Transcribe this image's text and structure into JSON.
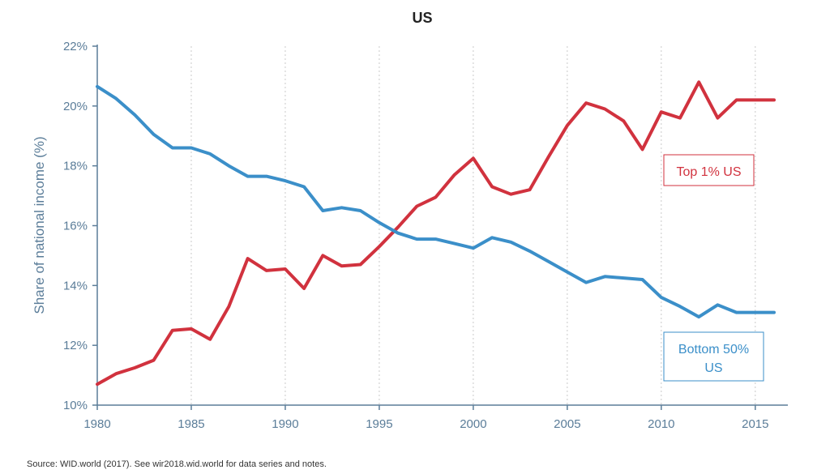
{
  "chart_data": {
    "type": "line",
    "title": "US",
    "ylabel": "Share of national income (%)",
    "xlabel": "",
    "xlim": [
      1980,
      2016
    ],
    "ylim": [
      10,
      22
    ],
    "x_ticks": [
      1980,
      1985,
      1990,
      1995,
      2000,
      2005,
      2010,
      2015
    ],
    "y_ticks": [
      "10%",
      "12%",
      "14%",
      "16%",
      "18%",
      "20%",
      "22%"
    ],
    "y_tick_values": [
      10,
      12,
      14,
      16,
      18,
      20,
      22
    ],
    "grid": "vertical dotted",
    "x": [
      1980,
      1981,
      1982,
      1983,
      1984,
      1985,
      1986,
      1987,
      1988,
      1989,
      1990,
      1991,
      1992,
      1993,
      1994,
      1995,
      1996,
      1997,
      1998,
      1999,
      2000,
      2001,
      2002,
      2003,
      2004,
      2005,
      2006,
      2007,
      2008,
      2009,
      2010,
      2011,
      2012,
      2013,
      2014,
      2015,
      2016
    ],
    "series": [
      {
        "name": "Top 1% US",
        "color": "#d1323e",
        "values": [
          10.7,
          11.05,
          11.25,
          11.5,
          12.5,
          12.55,
          12.2,
          13.3,
          14.9,
          14.5,
          14.55,
          13.9,
          15.0,
          14.65,
          14.7,
          15.3,
          15.95,
          16.65,
          16.95,
          17.7,
          18.25,
          17.3,
          17.05,
          17.2,
          18.3,
          19.35,
          20.1,
          19.9,
          19.5,
          18.55,
          19.8,
          19.6,
          20.8,
          19.6,
          20.2,
          20.2,
          20.2
        ]
      },
      {
        "name": "Bottom 50% US",
        "color": "#3b8fc9",
        "values": [
          20.65,
          20.25,
          19.7,
          19.05,
          18.6,
          18.6,
          18.4,
          18.0,
          17.65,
          17.65,
          17.5,
          17.3,
          16.5,
          16.6,
          16.5,
          16.1,
          15.75,
          15.55,
          15.55,
          15.4,
          15.25,
          15.6,
          15.45,
          15.15,
          14.8,
          14.45,
          14.1,
          14.3,
          14.25,
          14.2,
          13.6,
          13.3,
          12.95,
          13.35,
          13.1,
          13.1,
          13.1
        ]
      }
    ],
    "labels": {
      "top": "Top 1% US",
      "bottom_line1": "Bottom 50%",
      "bottom_line2": "US"
    },
    "axis_color": "#5b7d99"
  },
  "source": "Source:  WID.world (2017). See wir2018.wid.world for data series and notes."
}
